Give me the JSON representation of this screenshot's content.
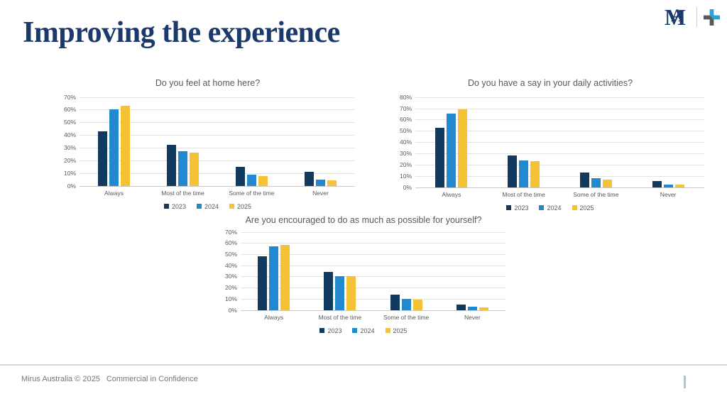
{
  "slide": {
    "title": "Improving the experience",
    "footer": {
      "copyright": "Mirus Australia © 2025",
      "classification": "Commercial in Confidence"
    },
    "logo": {
      "letter_m": "M",
      "letter_a": "A"
    }
  },
  "colors": {
    "series_2023": "#12395e",
    "series_2024": "#2289ce",
    "series_2025": "#f3c235",
    "heading_navy": "#1b3a6b",
    "chart_text": "#595959",
    "footer_accent": "#aac7da",
    "logo_plus_blue": "#2d9fd8",
    "logo_plus_gray": "#58595b"
  },
  "chart_data": [
    {
      "type": "bar",
      "title": "Do you feel at home here?",
      "categories": [
        "Always",
        "Most of the time",
        "Some of the time",
        "Never"
      ],
      "series": [
        {
          "name": "2023",
          "color": "#12395e",
          "values": [
            43,
            32,
            15,
            11
          ]
        },
        {
          "name": "2024",
          "color": "#2289ce",
          "values": [
            60,
            27,
            9,
            5
          ]
        },
        {
          "name": "2025",
          "color": "#f3c235",
          "values": [
            63,
            26,
            7.5,
            4
          ]
        }
      ],
      "ylabel_format": "percent",
      "ylim": [
        0,
        70
      ],
      "ytick_step": 10,
      "grid": true,
      "legend_position": "bottom"
    },
    {
      "type": "bar",
      "title": "Do you have a say in your daily activities?",
      "categories": [
        "Always",
        "Most of the time",
        "Some of the time",
        "Never"
      ],
      "series": [
        {
          "name": "2023",
          "color": "#12395e",
          "values": [
            53,
            28,
            13,
            5.5
          ]
        },
        {
          "name": "2024",
          "color": "#2289ce",
          "values": [
            65,
            24,
            8,
            2.5
          ]
        },
        {
          "name": "2025",
          "color": "#f3c235",
          "values": [
            69,
            23,
            7,
            2
          ]
        }
      ],
      "ylabel_format": "percent",
      "ylim": [
        0,
        80
      ],
      "ytick_step": 10,
      "grid": true,
      "legend_position": "bottom"
    },
    {
      "type": "bar",
      "title": "Are you encouraged to do as much as possible for yourself?",
      "categories": [
        "Always",
        "Most of the time",
        "Some of the time",
        "Never"
      ],
      "series": [
        {
          "name": "2023",
          "color": "#12395e",
          "values": [
            48,
            34,
            14,
            5
          ]
        },
        {
          "name": "2024",
          "color": "#2289ce",
          "values": [
            57,
            30,
            10,
            3
          ]
        },
        {
          "name": "2025",
          "color": "#f3c235",
          "values": [
            58,
            30,
            9.5,
            2.5
          ]
        }
      ],
      "ylabel_format": "percent",
      "ylim": [
        0,
        70
      ],
      "ytick_step": 10,
      "grid": true,
      "legend_position": "bottom"
    }
  ]
}
